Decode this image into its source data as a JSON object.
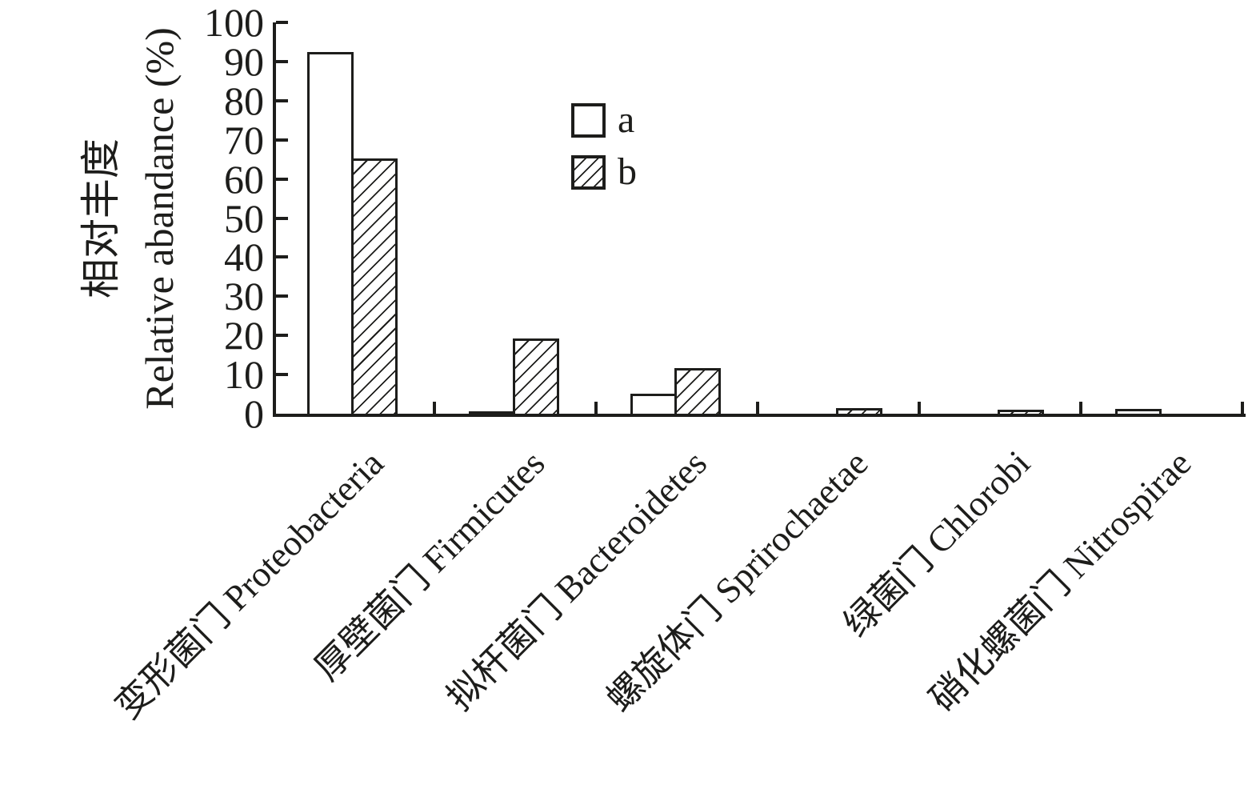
{
  "chart_data": {
    "type": "bar",
    "title": "",
    "categories": [
      "变形菌门 Proteobacteria",
      "厚壁菌门 Firmicutes",
      "拟杆菌门 Bacteroidetes",
      "螺旋体门 Sprirochaetae",
      "绿菌门 Chlorobi",
      "硝化螺菌门 Nitrospirae"
    ],
    "series": [
      {
        "name": "a",
        "fill": "white",
        "values": [
          92.4,
          0.7,
          5.1,
          0,
          0,
          1.2
        ]
      },
      {
        "name": "b",
        "fill": "hatched",
        "values": [
          65.3,
          19.3,
          11.6,
          1.4,
          1.1,
          0
        ]
      }
    ],
    "ylabel_cn": "相对丰度",
    "ylabel_en": "Relative abandance (%)",
    "ylim": [
      0,
      100
    ],
    "ytick_step": 10,
    "grid": false,
    "legend_position": "upper-middle-left",
    "ink_color": "#1d1d1b",
    "hatch_pattern": "forward-diagonal /"
  },
  "legend": {
    "items": [
      {
        "label": "a"
      },
      {
        "label": "b"
      }
    ]
  }
}
